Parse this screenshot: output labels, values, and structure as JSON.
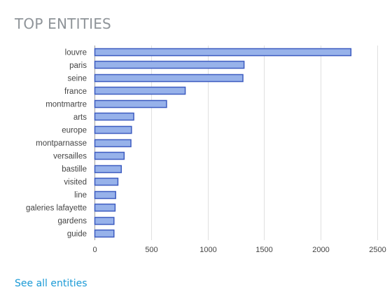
{
  "header": {
    "title": "TOP ENTITIES"
  },
  "footer": {
    "see_all_label": "See all entities"
  },
  "colors": {
    "bar_fill": "#97b2ea",
    "bar_stroke": "#3d5cc0",
    "grid": "#e0e0e0",
    "axis_text": "#444444",
    "title": "#8f9499",
    "link": "#1a9ad6"
  },
  "chart_data": {
    "type": "bar",
    "orientation": "horizontal",
    "categories": [
      "louvre",
      "paris",
      "seine",
      "france",
      "montmartre",
      "arts",
      "europe",
      "montparnasse",
      "versailles",
      "bastille",
      "visited",
      "line",
      "galeries lafayette",
      "gardens",
      "guide"
    ],
    "values": [
      2270,
      1325,
      1315,
      805,
      640,
      350,
      330,
      325,
      265,
      240,
      210,
      190,
      185,
      175,
      175
    ],
    "xlim": [
      0,
      2500
    ],
    "xticks": [
      0,
      500,
      1000,
      1500,
      2000,
      2500
    ],
    "grid": true,
    "legend": "none"
  }
}
